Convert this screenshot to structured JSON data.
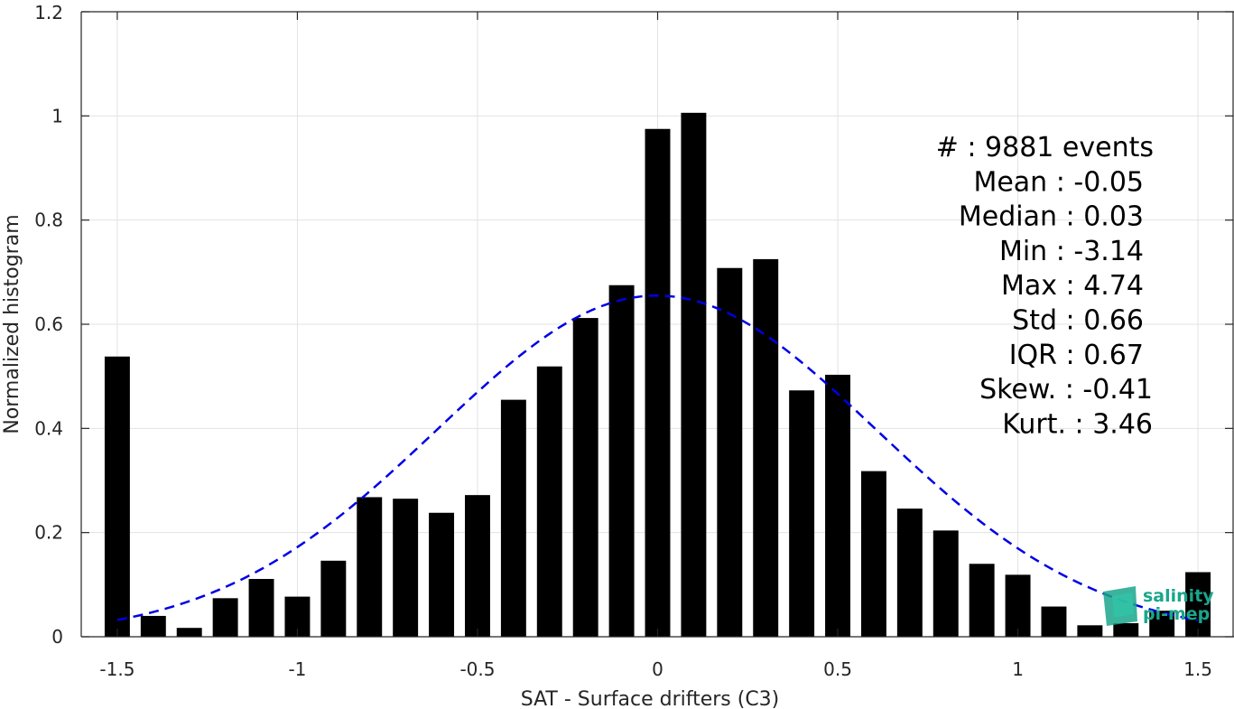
{
  "chart_data": {
    "type": "bar",
    "xlabel": "SAT - Surface drifters (C3)",
    "ylabel": "Normalized histogram",
    "xlim": [
      -1.6,
      1.6
    ],
    "ylim": [
      0,
      1.2
    ],
    "grid": true,
    "xticks": [
      -1.5,
      -1,
      -0.5,
      0,
      0.5,
      1,
      1.5
    ],
    "xtick_labels": [
      "-1.5",
      "-1",
      "-0.5",
      "0",
      "0.5",
      "1",
      "1.5"
    ],
    "yticks": [
      0,
      0.2,
      0.4,
      0.6,
      0.8,
      1,
      1.2
    ],
    "ytick_labels": [
      "0",
      "0.2",
      "0.4",
      "0.6",
      "0.8",
      "1",
      "1.2"
    ],
    "bar_width": 0.07,
    "bar_color": "#000000",
    "series": [
      {
        "x": [
          -1.5,
          -1.4,
          -1.3,
          -1.2,
          -1.1,
          -1.0,
          -0.9,
          -0.8,
          -0.7,
          -0.6,
          -0.5,
          -0.4,
          -0.3,
          -0.2,
          -0.1,
          0.0,
          0.1,
          0.2,
          0.3,
          0.4,
          0.5,
          0.6,
          0.7,
          0.8,
          0.9,
          1.0,
          1.1,
          1.2,
          1.3,
          1.4,
          1.5
        ],
        "values": [
          0.538,
          0.04,
          0.017,
          0.074,
          0.111,
          0.077,
          0.146,
          0.268,
          0.265,
          0.238,
          0.272,
          0.455,
          0.519,
          0.612,
          0.675,
          0.975,
          1.006,
          0.708,
          0.725,
          0.473,
          0.503,
          0.318,
          0.246,
          0.204,
          0.14,
          0.119,
          0.058,
          0.022,
          0.026,
          0.05,
          0.124
        ]
      }
    ],
    "fit": {
      "type": "gaussian",
      "mean": -0.0027,
      "std": 0.61,
      "peak": 0.655,
      "x_range": [
        -1.5,
        1.5
      ],
      "color": "#0000e6",
      "style": "dashed"
    },
    "stats": [
      {
        "label": "#  : 9881 events"
      },
      {
        "label": "Mean : -0.05"
      },
      {
        "label": "Median : 0.03"
      },
      {
        "label": "Min : -3.14"
      },
      {
        "label": "Max : 4.74"
      },
      {
        "label": "Std : 0.66"
      },
      {
        "label": "IQR : 0.67"
      },
      {
        "label": "Skew. : -0.41"
      },
      {
        "label": "Kurt. : 3.46"
      }
    ],
    "logo": {
      "line1": "salinity",
      "line2": "pi-mep"
    }
  }
}
